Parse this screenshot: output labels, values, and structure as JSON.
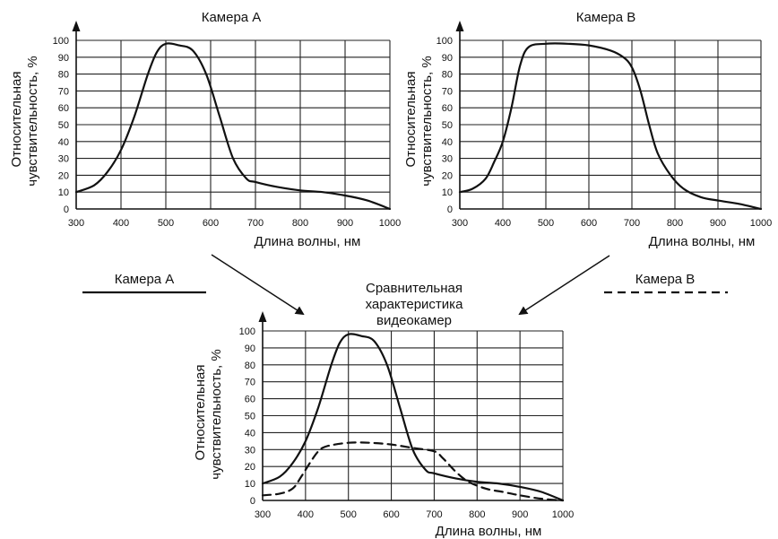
{
  "legend": {
    "camera_a": "Камера А",
    "camera_b": "Камера В"
  },
  "chart_data": [
    {
      "type": "line",
      "title": "Камера А",
      "xlabel": "Длина волны, нм",
      "ylabel_line1": "Относительная",
      "ylabel_line2": "чувствительность, %",
      "xlim": [
        300,
        1000
      ],
      "ylim": [
        0,
        100
      ],
      "x_ticks": [
        300,
        400,
        500,
        600,
        700,
        800,
        900,
        1000
      ],
      "y_ticks": [
        0,
        10,
        20,
        30,
        40,
        50,
        60,
        70,
        80,
        90,
        100
      ],
      "grid": true,
      "series": [
        {
          "style": "solid",
          "x": [
            300,
            340,
            370,
            400,
            430,
            460,
            480,
            500,
            530,
            560,
            590,
            620,
            650,
            680,
            700,
            750,
            800,
            850,
            900,
            950,
            1000
          ],
          "y": [
            10,
            14,
            22,
            35,
            55,
            80,
            93,
            98,
            97,
            94,
            80,
            55,
            30,
            18,
            16,
            13,
            11,
            10,
            8,
            5,
            0
          ]
        }
      ]
    },
    {
      "type": "line",
      "title": "Камера В",
      "xlabel": "Длина волны, нм",
      "ylabel_line1": "Относительная",
      "ylabel_line2": "чувствительность, %",
      "xlim": [
        300,
        1000
      ],
      "ylim": [
        0,
        100
      ],
      "x_ticks": [
        300,
        400,
        500,
        600,
        700,
        800,
        900,
        1000
      ],
      "y_ticks": [
        0,
        10,
        20,
        30,
        40,
        50,
        60,
        70,
        80,
        90,
        100
      ],
      "grid": true,
      "series": [
        {
          "style": "dashed",
          "x": [
            300,
            330,
            360,
            380,
            400,
            420,
            440,
            460,
            500,
            550,
            600,
            650,
            680,
            700,
            720,
            740,
            760,
            790,
            820,
            860,
            900,
            950,
            1000
          ],
          "y": [
            10,
            12,
            18,
            28,
            40,
            60,
            85,
            96,
            98,
            98,
            97,
            94,
            90,
            84,
            70,
            50,
            33,
            20,
            12,
            7,
            5,
            3,
            0
          ]
        }
      ]
    },
    {
      "type": "line",
      "title": "Сравнительная характеристика видеокамер",
      "title_lines": [
        "Сравнительная",
        "характеристика",
        "видеокамер"
      ],
      "xlabel": "Длина волны, нм",
      "ylabel_line1": "Относительная",
      "ylabel_line2": "чувствительность, %",
      "xlim": [
        300,
        1000
      ],
      "ylim": [
        0,
        100
      ],
      "x_ticks": [
        300,
        400,
        500,
        600,
        700,
        800,
        900,
        1000
      ],
      "y_ticks": [
        0,
        10,
        20,
        30,
        40,
        50,
        60,
        70,
        80,
        90,
        100
      ],
      "grid": true,
      "series": [
        {
          "name": "Камера А",
          "style": "solid",
          "x": [
            300,
            340,
            370,
            400,
            430,
            460,
            480,
            500,
            530,
            560,
            590,
            620,
            650,
            680,
            700,
            750,
            800,
            850,
            900,
            950,
            1000
          ],
          "y": [
            10,
            14,
            22,
            35,
            55,
            80,
            93,
            98,
            97,
            94,
            80,
            55,
            30,
            18,
            16,
            13,
            11,
            10,
            8,
            5,
            0
          ]
        },
        {
          "name": "Камера В",
          "style": "dashed",
          "x": [
            300,
            340,
            370,
            390,
            410,
            430,
            450,
            500,
            550,
            600,
            650,
            700,
            720,
            750,
            780,
            820,
            860,
            900,
            950,
            1000
          ],
          "y": [
            3,
            4,
            7,
            14,
            22,
            29,
            32,
            34,
            34,
            33,
            31,
            29,
            25,
            17,
            11,
            7,
            5,
            3,
            1,
            0
          ]
        }
      ]
    }
  ]
}
